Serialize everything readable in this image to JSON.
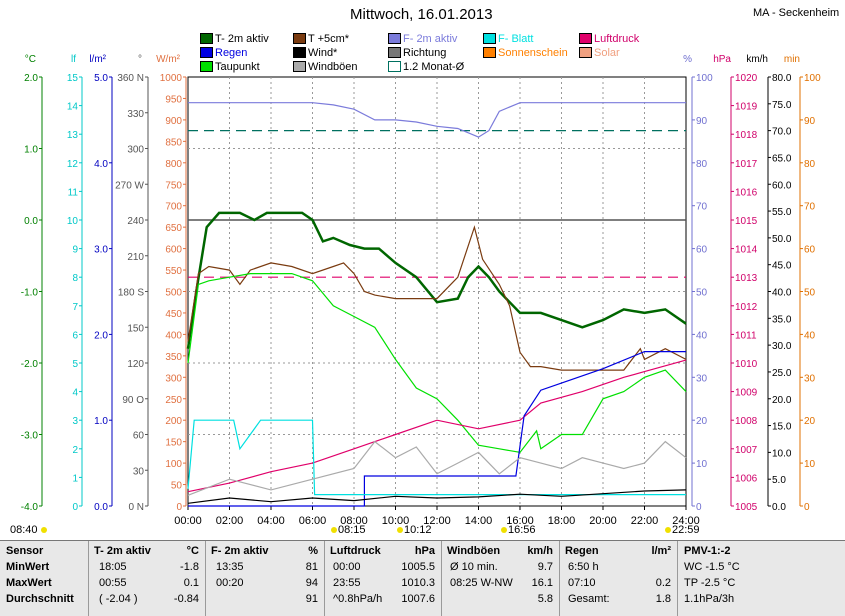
{
  "title": "Mittwoch, 16.01.2013",
  "station": "MA - Seckenheim",
  "legend": [
    {
      "label": "T- 2m aktiv",
      "color": "#006600"
    },
    {
      "label": "T +5cm*",
      "color": "#7a3b10"
    },
    {
      "label": "F- 2m aktiv",
      "color": "#7b7bdb"
    },
    {
      "label": "F- Blatt",
      "color": "#00e0e0"
    },
    {
      "label": "Luftdruck",
      "color": "#e0006a"
    },
    {
      "label": "Regen",
      "color": "#0000e0"
    },
    {
      "label": "Wind*",
      "color": "#000000"
    },
    {
      "label": "Richtung",
      "color": "#777777"
    },
    {
      "label": "Sonnenschein",
      "color": "#ff8000"
    },
    {
      "label": "Solar",
      "color": "#f0a080"
    },
    {
      "label": "Taupunkt",
      "color": "#00e000"
    },
    {
      "label": "Windböen",
      "color": "#aaaaaa"
    },
    {
      "label": "1.2 Monat-Ø",
      "color": "#007060"
    }
  ],
  "axes": {
    "units_left": [
      "°C",
      "lf",
      "l/m²",
      "°",
      "W/m²"
    ],
    "units_right": [
      "%",
      "hPa",
      "km/h",
      "min"
    ],
    "temp": [
      "2.0",
      "1.0",
      "0.0",
      "-1.0",
      "-2.0",
      "-3.0",
      "-4.0"
    ],
    "lf": [
      "15",
      "14",
      "13",
      "12",
      "11",
      "10",
      "9",
      "8",
      "7",
      "6",
      "5",
      "4",
      "3",
      "2",
      "1",
      "0"
    ],
    "rain": [
      "5.0",
      "4.0",
      "3.0",
      "2.0",
      "1.0",
      "0.0"
    ],
    "dir": [
      "360 N",
      "330",
      "300",
      "270 W",
      "240",
      "210",
      "180 S",
      "150",
      "120",
      "90 O",
      "60",
      "30",
      "0 N"
    ],
    "solar": [
      "1000",
      "950",
      "900",
      "850",
      "800",
      "750",
      "700",
      "650",
      "600",
      "550",
      "500",
      "450",
      "400",
      "350",
      "300",
      "250",
      "200",
      "150",
      "100",
      "50",
      "0"
    ],
    "hum": [
      "100",
      "90",
      "80",
      "70",
      "60",
      "50",
      "40",
      "30",
      "20",
      "10",
      "0"
    ],
    "hpa": [
      "1020",
      "1019",
      "1018",
      "1017",
      "1016",
      "1015",
      "1014",
      "1013",
      "1012",
      "1011",
      "1010",
      "1009",
      "1008",
      "1007",
      "1006",
      "1005"
    ],
    "kmh": [
      "80.0",
      "75.0",
      "70.0",
      "65.0",
      "60.0",
      "55.0",
      "50.0",
      "45.0",
      "40.0",
      "35.0",
      "30.0",
      "25.0",
      "20.0",
      "15.0",
      "10.0",
      "5.0",
      "0.0"
    ],
    "min": [
      "100",
      "90",
      "80",
      "70",
      "60",
      "50",
      "40",
      "30",
      "20",
      "10",
      "0"
    ],
    "x_ticks": [
      "00:00",
      "02:00",
      "04:00",
      "06:00",
      "08:00",
      "10:00",
      "12:00",
      "14:00",
      "16:00",
      "18:00",
      "20:00",
      "22:00",
      "24:00"
    ],
    "markers": [
      "08:40",
      "08:15",
      "10:12",
      "16:56",
      "22:59"
    ]
  },
  "chart_data": {
    "type": "line",
    "title": "Mittwoch, 16.01.2013",
    "x_unit": "hour",
    "series": [
      {
        "name": "T- 2m aktiv",
        "axis": "°C",
        "points": [
          [
            0,
            -1.8
          ],
          [
            0.4,
            -1.0
          ],
          [
            0.9,
            -0.1
          ],
          [
            1.5,
            0.1
          ],
          [
            2.5,
            0.1
          ],
          [
            3.2,
            0.0
          ],
          [
            3.8,
            0.1
          ],
          [
            5.5,
            0.1
          ],
          [
            6.0,
            0.0
          ],
          [
            6.5,
            -0.3
          ],
          [
            7.0,
            -0.25
          ],
          [
            7.8,
            -0.35
          ],
          [
            8.5,
            -0.4
          ],
          [
            9.2,
            -0.4
          ],
          [
            10,
            -0.6
          ],
          [
            11,
            -0.8
          ],
          [
            12,
            -1.15
          ],
          [
            13,
            -1.1
          ],
          [
            13.5,
            -0.8
          ],
          [
            14,
            -0.65
          ],
          [
            14.5,
            -0.8
          ],
          [
            15,
            -1.0
          ],
          [
            16,
            -1.3
          ],
          [
            17,
            -1.3
          ],
          [
            18,
            -1.4
          ],
          [
            19,
            -1.5
          ],
          [
            20,
            -1.4
          ],
          [
            21,
            -1.25
          ],
          [
            22,
            -1.3
          ],
          [
            23,
            -1.25
          ],
          [
            24,
            -1.45
          ]
        ]
      },
      {
        "name": "T +5cm*",
        "axis": "°C",
        "points": [
          [
            0,
            -1.7
          ],
          [
            0.5,
            -0.75
          ],
          [
            1,
            -0.65
          ],
          [
            2,
            -0.7
          ],
          [
            2.5,
            -0.9
          ],
          [
            3,
            -0.7
          ],
          [
            4,
            -0.6
          ],
          [
            5,
            -0.65
          ],
          [
            6,
            -0.75
          ],
          [
            7,
            -0.65
          ],
          [
            7.5,
            -0.6
          ],
          [
            8,
            -0.75
          ],
          [
            8.5,
            -1.0
          ],
          [
            9,
            -1.05
          ],
          [
            10,
            -1.1
          ],
          [
            11,
            -1.1
          ],
          [
            12,
            -1.1
          ],
          [
            13,
            -0.8
          ],
          [
            13.8,
            -0.1
          ],
          [
            14.2,
            -0.55
          ],
          [
            15,
            -0.9
          ],
          [
            15.5,
            -1.2
          ],
          [
            16,
            -1.85
          ],
          [
            16.5,
            -2.05
          ],
          [
            17,
            -2.05
          ],
          [
            18,
            -2.1
          ],
          [
            19,
            -2.1
          ],
          [
            20,
            -2.1
          ],
          [
            21,
            -2.1
          ],
          [
            21.8,
            -1.8
          ],
          [
            22,
            -1.95
          ],
          [
            23,
            -1.8
          ],
          [
            24,
            -1.95
          ]
        ]
      },
      {
        "name": "Taupunkt",
        "axis": "°C",
        "points": [
          [
            0,
            -2.0
          ],
          [
            0.5,
            -0.9
          ],
          [
            1,
            -0.85
          ],
          [
            2,
            -0.8
          ],
          [
            3,
            -0.75
          ],
          [
            4,
            -0.75
          ],
          [
            5,
            -0.75
          ],
          [
            6,
            -0.85
          ],
          [
            7,
            -1.2
          ],
          [
            8,
            -1.35
          ],
          [
            9,
            -1.5
          ],
          [
            10,
            -1.95
          ],
          [
            11,
            -2.35
          ],
          [
            12,
            -2.5
          ],
          [
            13,
            -2.8
          ],
          [
            14,
            -3.15
          ],
          [
            15,
            -3.2
          ],
          [
            16,
            -3.25
          ],
          [
            16.8,
            -2.95
          ],
          [
            17,
            -3.2
          ],
          [
            18,
            -3.0
          ],
          [
            19,
            -3.0
          ],
          [
            20,
            -2.5
          ],
          [
            21,
            -2.4
          ],
          [
            22,
            -2.2
          ],
          [
            23,
            -2.1
          ],
          [
            24,
            -2.4
          ]
        ]
      },
      {
        "name": "F- 2m aktiv",
        "axis": "%",
        "points": [
          [
            0,
            94
          ],
          [
            2,
            94
          ],
          [
            4,
            94
          ],
          [
            6,
            94
          ],
          [
            7,
            93.5
          ],
          [
            8,
            92.5
          ],
          [
            9,
            90
          ],
          [
            10,
            90
          ],
          [
            11,
            89.5
          ],
          [
            12,
            88.5
          ],
          [
            13,
            88
          ],
          [
            14,
            86
          ],
          [
            14.5,
            87.5
          ],
          [
            15,
            92
          ],
          [
            16,
            94
          ],
          [
            18,
            94
          ],
          [
            20,
            94
          ],
          [
            22,
            94
          ],
          [
            24,
            94
          ]
        ]
      },
      {
        "name": "Luftdruck",
        "axis": "hPa",
        "points": [
          [
            0,
            1005.5
          ],
          [
            2,
            1005.8
          ],
          [
            4,
            1006.2
          ],
          [
            6,
            1006.5
          ],
          [
            8,
            1007.0
          ],
          [
            10,
            1007.5
          ],
          [
            12,
            1008.0
          ],
          [
            14,
            1007.7
          ],
          [
            16,
            1008.0
          ],
          [
            17,
            1008.6
          ],
          [
            19,
            1009.0
          ],
          [
            21,
            1009.5
          ],
          [
            22,
            1009.7
          ],
          [
            24,
            1010.1
          ]
        ]
      },
      {
        "name": "Regen",
        "axis": "l/m²",
        "points": [
          [
            0,
            0
          ],
          [
            8.5,
            0
          ],
          [
            8.5,
            0.35
          ],
          [
            15.8,
            0.35
          ],
          [
            16.2,
            1.05
          ],
          [
            17,
            1.35
          ],
          [
            20,
            1.6
          ],
          [
            22,
            1.8
          ],
          [
            24,
            1.8
          ]
        ]
      },
      {
        "name": "F- Blatt",
        "axis": "lf",
        "points": [
          [
            0,
            0.6
          ],
          [
            0.3,
            3
          ],
          [
            2.2,
            3
          ],
          [
            2.5,
            2
          ],
          [
            3.5,
            3
          ],
          [
            6,
            3
          ],
          [
            6.1,
            0.4
          ],
          [
            24,
            0.4
          ]
        ]
      },
      {
        "name": "Wind*",
        "axis": "km/h",
        "points": [
          [
            0,
            0.5
          ],
          [
            2,
            1.5
          ],
          [
            4,
            0.8
          ],
          [
            6,
            1.5
          ],
          [
            8,
            1.0
          ],
          [
            10,
            1.8
          ],
          [
            12,
            1.5
          ],
          [
            14,
            1.7
          ],
          [
            16,
            2.2
          ],
          [
            18,
            1.8
          ],
          [
            20,
            2.3
          ],
          [
            22,
            2.8
          ],
          [
            24,
            3.0
          ]
        ]
      },
      {
        "name": "Windböen",
        "axis": "km/h",
        "points": [
          [
            0,
            2
          ],
          [
            2,
            5
          ],
          [
            4,
            3
          ],
          [
            6,
            5
          ],
          [
            8,
            7
          ],
          [
            9,
            12
          ],
          [
            10,
            9
          ],
          [
            11,
            11
          ],
          [
            12,
            6
          ],
          [
            13,
            8
          ],
          [
            14,
            10
          ],
          [
            15,
            6
          ],
          [
            16,
            9
          ],
          [
            17,
            8
          ],
          [
            18,
            7
          ],
          [
            19,
            9
          ],
          [
            20,
            8
          ],
          [
            21,
            7
          ],
          [
            22,
            8
          ],
          [
            23,
            12
          ],
          [
            24,
            9
          ]
        ]
      }
    ],
    "reference_lines": [
      {
        "name": "1.2 Monat-Ø",
        "axis": "km/h",
        "value": 70,
        "color": "#007060"
      },
      {
        "name": "Luftdruck Ø",
        "axis": "hPa",
        "value": 1013.0,
        "color": "#e0006a"
      },
      {
        "axis": "°C",
        "value": 0.0,
        "color": "#555555"
      }
    ]
  },
  "stats": {
    "sensor": {
      "header": "Sensor",
      "rows": [
        "MinWert",
        "MaxWert",
        "Durchschnitt"
      ]
    },
    "temp": {
      "header": "T- 2m aktiv",
      "unit": "°C",
      "rows": [
        [
          "18:05",
          "-1.8"
        ],
        [
          "00:55",
          "0.1"
        ],
        [
          "( -2.04 )",
          "-0.84"
        ]
      ]
    },
    "hum": {
      "header": "F- 2m aktiv",
      "unit": "%",
      "rows": [
        [
          "13:35",
          "81"
        ],
        [
          "00:20",
          "94"
        ],
        [
          "",
          "91"
        ]
      ]
    },
    "press": {
      "header": "Luftdruck",
      "unit": "hPa",
      "rows": [
        [
          "00:00",
          "1005.5"
        ],
        [
          "23:55",
          "1010.3"
        ],
        [
          "^0.8hPa/h",
          "1007.6"
        ]
      ]
    },
    "wind": {
      "header": "Windböen",
      "unit": "km/h",
      "rows": [
        [
          "Ø 10 min.",
          "9.7"
        ],
        [
          "08:25  W-NW",
          "16.1"
        ],
        [
          "",
          "5.8"
        ]
      ]
    },
    "rain": {
      "header": "Regen",
      "unit": "l/m²",
      "rows": [
        [
          "6:50 h",
          ""
        ],
        [
          "07:10",
          "0.2"
        ],
        [
          "Gesamt:",
          "1.8"
        ]
      ]
    },
    "pmv": {
      "header": "PMV-1:-2",
      "rows": [
        "WC -1.5 °C",
        "TP -2.5 °C",
        "1.1hPa/3h"
      ]
    }
  }
}
